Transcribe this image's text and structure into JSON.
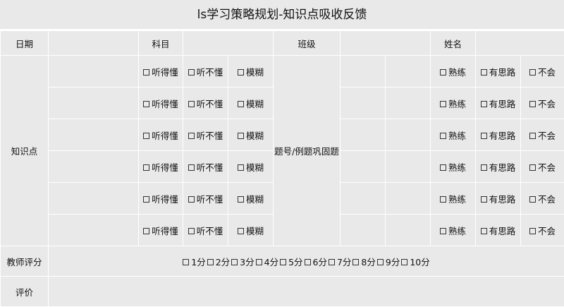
{
  "title": "ls学习策略规划-知识点吸收反馈",
  "header": {
    "date_label": "日期",
    "subject_label": "科目",
    "class_label": "班级",
    "name_label": "姓名"
  },
  "knowledge": {
    "label": "知识点",
    "exercise_label": "题号/例题巩固题",
    "row_count": 6,
    "understanding_options": [
      "听得懂",
      "听不懂",
      "模糊"
    ],
    "mastery_options": [
      "熟练",
      "有思路",
      "不会"
    ]
  },
  "teacher_score": {
    "label": "教师评分",
    "options": [
      "1分",
      "2分",
      "3分",
      "4分",
      "5分",
      "6分",
      "7分",
      "8分",
      "9分",
      "10分"
    ]
  },
  "evaluation": {
    "label": "评价"
  }
}
